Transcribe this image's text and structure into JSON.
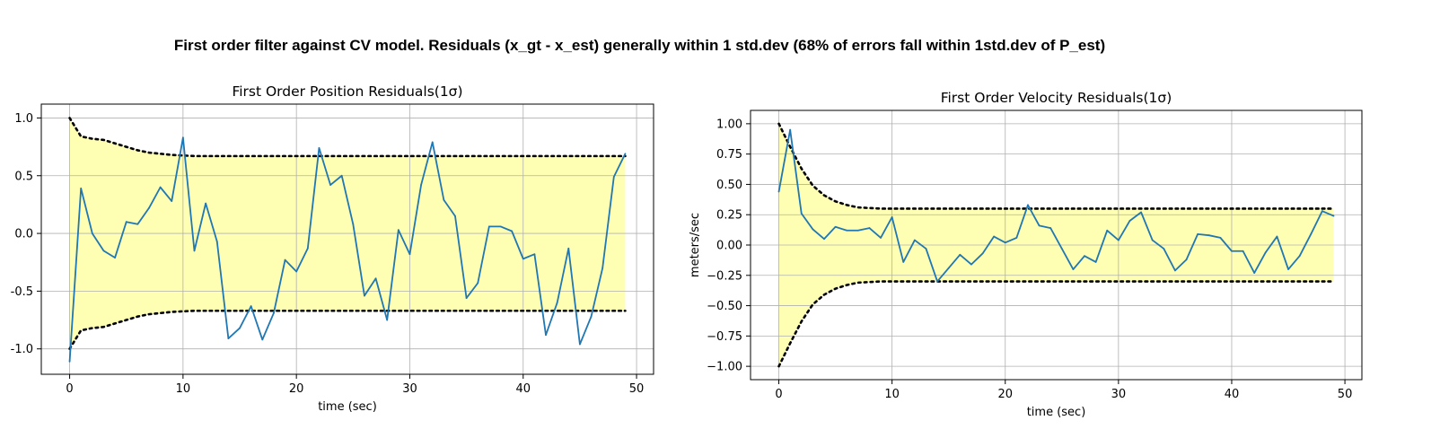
{
  "suptitle": "First order filter against CV model. Residuals (x_gt - x_est) generally within 1 std.dev (68% of errors fall within 1std.dev of P_est)",
  "colors": {
    "line": "#1f77b4",
    "fill": "#ffffb3",
    "bound": "#000000",
    "grid": "#b0b0b0"
  },
  "chart_data": [
    {
      "type": "line",
      "title": "First Order Position Residuals(1σ)",
      "xlabel": "time (sec)",
      "ylabel": "",
      "xlim": [
        -2.5,
        51.5
      ],
      "ylim": [
        -1.22,
        1.12
      ],
      "xticks": [
        0,
        10,
        20,
        30,
        40,
        50
      ],
      "xtick_labels": [
        "0",
        "10",
        "20",
        "30",
        "40",
        "50"
      ],
      "yticks": [
        1.0,
        0.5,
        0.0,
        -0.5,
        -1.0
      ],
      "ytick_labels": [
        "1.0",
        "0.5",
        "0.0",
        "-0.5",
        "-1.0"
      ],
      "grid": true,
      "x": [
        0,
        1,
        2,
        3,
        4,
        5,
        6,
        7,
        8,
        9,
        10,
        11,
        12,
        13,
        14,
        15,
        16,
        17,
        18,
        19,
        20,
        21,
        22,
        23,
        24,
        25,
        26,
        27,
        28,
        29,
        30,
        31,
        32,
        33,
        34,
        35,
        36,
        37,
        38,
        39,
        40,
        41,
        42,
        43,
        44,
        45,
        46,
        47,
        48,
        49
      ],
      "series": [
        {
          "role": "residual",
          "values": [
            -1.11,
            0.39,
            0.0,
            -0.15,
            -0.21,
            0.1,
            0.08,
            0.22,
            0.4,
            0.28,
            0.83,
            -0.15,
            0.26,
            -0.07,
            -0.91,
            -0.82,
            -0.63,
            -0.92,
            -0.69,
            -0.23,
            -0.33,
            -0.13,
            0.74,
            0.42,
            0.5,
            0.08,
            -0.54,
            -0.39,
            -0.75,
            0.03,
            -0.18,
            0.42,
            0.79,
            0.29,
            0.15,
            -0.56,
            -0.43,
            0.06,
            0.06,
            0.02,
            -0.22,
            -0.18,
            -0.88,
            -0.6,
            -0.13,
            -0.96,
            -0.72,
            -0.3,
            0.49,
            0.69
          ]
        },
        {
          "role": "upper-bound",
          "values": [
            1.0,
            0.84,
            0.82,
            0.81,
            0.78,
            0.75,
            0.72,
            0.7,
            0.69,
            0.68,
            0.675,
            0.67,
            0.67,
            0.67,
            0.67,
            0.67,
            0.67,
            0.67,
            0.67,
            0.67,
            0.67,
            0.67,
            0.67,
            0.67,
            0.67,
            0.67,
            0.67,
            0.67,
            0.67,
            0.67,
            0.67,
            0.67,
            0.67,
            0.67,
            0.67,
            0.67,
            0.67,
            0.67,
            0.67,
            0.67,
            0.67,
            0.67,
            0.67,
            0.67,
            0.67,
            0.67,
            0.67,
            0.67,
            0.67,
            0.67
          ]
        }
      ]
    },
    {
      "type": "line",
      "title": "First Order Velocity Residuals(1σ)",
      "xlabel": "time (sec)",
      "ylabel": "meters/sec",
      "xlim": [
        -2.5,
        51.5
      ],
      "ylim": [
        -1.11,
        1.11
      ],
      "xticks": [
        0,
        10,
        20,
        30,
        40,
        50
      ],
      "xtick_labels": [
        "0",
        "10",
        "20",
        "30",
        "40",
        "50"
      ],
      "yticks": [
        1.0,
        0.75,
        0.5,
        0.25,
        0.0,
        -0.25,
        -0.5,
        -0.75,
        -1.0
      ],
      "ytick_labels": [
        "1.00",
        "0.75",
        "0.50",
        "0.25",
        "0.00",
        "−0.25",
        "−0.50",
        "−0.75",
        "−1.00"
      ],
      "grid": true,
      "x": [
        0,
        1,
        2,
        3,
        4,
        5,
        6,
        7,
        8,
        9,
        10,
        11,
        12,
        13,
        14,
        15,
        16,
        17,
        18,
        19,
        20,
        21,
        22,
        23,
        24,
        25,
        26,
        27,
        28,
        29,
        30,
        31,
        32,
        33,
        34,
        35,
        36,
        37,
        38,
        39,
        40,
        41,
        42,
        43,
        44,
        45,
        46,
        47,
        48,
        49
      ],
      "series": [
        {
          "role": "residual",
          "values": [
            0.44,
            0.95,
            0.26,
            0.13,
            0.05,
            0.15,
            0.12,
            0.12,
            0.14,
            0.06,
            0.23,
            -0.14,
            0.04,
            -0.03,
            -0.3,
            -0.19,
            -0.08,
            -0.16,
            -0.07,
            0.07,
            0.02,
            0.06,
            0.33,
            0.16,
            0.14,
            -0.03,
            -0.2,
            -0.09,
            -0.14,
            0.12,
            0.04,
            0.2,
            0.27,
            0.04,
            -0.03,
            -0.21,
            -0.12,
            0.09,
            0.08,
            0.06,
            -0.05,
            -0.05,
            -0.23,
            -0.06,
            0.07,
            -0.2,
            -0.09,
            0.09,
            0.28,
            0.24
          ]
        },
        {
          "role": "upper-bound",
          "values": [
            1.0,
            0.81,
            0.63,
            0.49,
            0.41,
            0.36,
            0.33,
            0.31,
            0.305,
            0.3,
            0.3,
            0.3,
            0.3,
            0.3,
            0.3,
            0.3,
            0.3,
            0.3,
            0.3,
            0.3,
            0.3,
            0.3,
            0.3,
            0.3,
            0.3,
            0.3,
            0.3,
            0.3,
            0.3,
            0.3,
            0.3,
            0.3,
            0.3,
            0.3,
            0.3,
            0.3,
            0.3,
            0.3,
            0.3,
            0.3,
            0.3,
            0.3,
            0.3,
            0.3,
            0.3,
            0.3,
            0.3,
            0.3,
            0.3,
            0.3
          ]
        }
      ]
    }
  ]
}
